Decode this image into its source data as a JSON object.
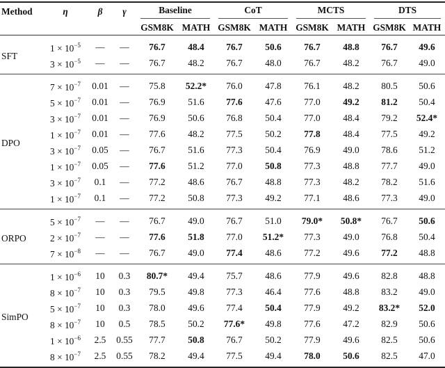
{
  "table": {
    "headers": {
      "method": "Method",
      "eta": "η",
      "beta": "β",
      "gamma": "γ",
      "groups": [
        "Baseline",
        "CoT",
        "MCTS",
        "DTS"
      ],
      "subcols": [
        "GSM8K",
        "MATH"
      ]
    },
    "groups": [
      {
        "method": "SFT",
        "rows": [
          {
            "eta_m": "1",
            "eta_e": "−5",
            "beta": "—",
            "gamma": "—",
            "values": [
              "76.7",
              "48.4",
              "76.7",
              "50.6",
              "76.7",
              "48.8",
              "76.7",
              "49.6"
            ],
            "bold": [
              0,
              1,
              2,
              3,
              4,
              5,
              6,
              7
            ]
          },
          {
            "eta_m": "3",
            "eta_e": "−5",
            "beta": "—",
            "gamma": "—",
            "values": [
              "76.7",
              "48.2",
              "76.7",
              "48.0",
              "76.7",
              "48.2",
              "76.7",
              "49.0"
            ],
            "bold": []
          }
        ]
      },
      {
        "method": "DPO",
        "rows": [
          {
            "eta_m": "7",
            "eta_e": "−7",
            "beta": "0.01",
            "gamma": "—",
            "values": [
              "75.8",
              "52.2*",
              "76.0",
              "47.8",
              "76.1",
              "48.2",
              "80.5",
              "50.6"
            ],
            "bold": [
              1
            ]
          },
          {
            "eta_m": "5",
            "eta_e": "−7",
            "beta": "0.01",
            "gamma": "—",
            "values": [
              "76.9",
              "51.6",
              "77.6",
              "47.6",
              "77.0",
              "49.2",
              "81.2",
              "50.4"
            ],
            "bold": [
              2,
              5,
              6
            ]
          },
          {
            "eta_m": "3",
            "eta_e": "−7",
            "beta": "0.01",
            "gamma": "—",
            "values": [
              "76.9",
              "50.6",
              "76.8",
              "50.4",
              "77.0",
              "48.4",
              "79.2",
              "52.4*"
            ],
            "bold": [
              7
            ]
          },
          {
            "eta_m": "1",
            "eta_e": "−7",
            "beta": "0.01",
            "gamma": "—",
            "values": [
              "77.6",
              "48.2",
              "77.5",
              "50.2",
              "77.8",
              "48.4",
              "77.5",
              "49.2"
            ],
            "bold": [
              4
            ]
          },
          {
            "eta_m": "3",
            "eta_e": "−7",
            "beta": "0.05",
            "gamma": "—",
            "values": [
              "76.7",
              "51.6",
              "77.3",
              "50.4",
              "76.9",
              "49.0",
              "78.6",
              "51.2"
            ],
            "bold": []
          },
          {
            "eta_m": "1",
            "eta_e": "−7",
            "beta": "0.05",
            "gamma": "—",
            "values": [
              "77.6",
              "51.2",
              "77.0",
              "50.8",
              "77.3",
              "48.8",
              "77.7",
              "49.0"
            ],
            "bold": [
              0,
              3
            ]
          },
          {
            "eta_m": "3",
            "eta_e": "−7",
            "beta": "0.1",
            "gamma": "—",
            "values": [
              "77.2",
              "48.6",
              "76.7",
              "48.8",
              "77.3",
              "48.2",
              "78.2",
              "51.6"
            ],
            "bold": []
          },
          {
            "eta_m": "1",
            "eta_e": "−7",
            "beta": "0.1",
            "gamma": "—",
            "values": [
              "77.2",
              "50.8",
              "77.3",
              "49.2",
              "77.1",
              "48.6",
              "77.3",
              "49.0"
            ],
            "bold": []
          }
        ]
      },
      {
        "method": "ORPO",
        "rows": [
          {
            "eta_m": "5",
            "eta_e": "−7",
            "beta": "—",
            "gamma": "—",
            "values": [
              "76.7",
              "49.0",
              "76.7",
              "51.0",
              "79.0*",
              "50.8*",
              "76.7",
              "50.6"
            ],
            "bold": [
              4,
              5,
              7
            ]
          },
          {
            "eta_m": "2",
            "eta_e": "−7",
            "beta": "—",
            "gamma": "—",
            "values": [
              "77.6",
              "51.8",
              "77.0",
              "51.2*",
              "77.3",
              "49.0",
              "76.8",
              "50.4"
            ],
            "bold": [
              0,
              1,
              3
            ]
          },
          {
            "eta_m": "7",
            "eta_e": "−8",
            "beta": "—",
            "gamma": "—",
            "values": [
              "76.7",
              "49.0",
              "77.4",
              "48.6",
              "77.2",
              "49.6",
              "77.2",
              "48.8"
            ],
            "bold": [
              2,
              6
            ]
          }
        ]
      },
      {
        "method": "SimPO",
        "rows": [
          {
            "eta_m": "1",
            "eta_e": "−6",
            "beta": "10",
            "gamma": "0.3",
            "values": [
              "80.7*",
              "49.4",
              "75.7",
              "48.6",
              "77.9",
              "49.6",
              "82.8",
              "48.8"
            ],
            "bold": [
              0
            ]
          },
          {
            "eta_m": "8",
            "eta_e": "−7",
            "beta": "10",
            "gamma": "0.3",
            "values": [
              "79.5",
              "49.8",
              "77.3",
              "46.4",
              "77.6",
              "48.8",
              "83.2",
              "49.0"
            ],
            "bold": []
          },
          {
            "eta_m": "5",
            "eta_e": "−7",
            "beta": "10",
            "gamma": "0.3",
            "values": [
              "78.0",
              "49.6",
              "77.4",
              "50.4",
              "77.9",
              "49.2",
              "83.2*",
              "52.0"
            ],
            "bold": [
              3,
              6,
              7
            ]
          },
          {
            "eta_m": "8",
            "eta_e": "−7",
            "beta": "10",
            "gamma": "0.5",
            "values": [
              "78.5",
              "50.2",
              "77.6*",
              "49.8",
              "77.6",
              "47.2",
              "82.9",
              "50.6"
            ],
            "bold": [
              2
            ]
          },
          {
            "eta_m": "1",
            "eta_e": "−6",
            "beta": "2.5",
            "gamma": "0.55",
            "values": [
              "77.7",
              "50.8",
              "76.7",
              "50.2",
              "77.9",
              "49.6",
              "82.5",
              "50.6"
            ],
            "bold": [
              1
            ]
          },
          {
            "eta_m": "8",
            "eta_e": "−7",
            "beta": "2.5",
            "gamma": "0.55",
            "values": [
              "78.2",
              "49.4",
              "77.5",
              "49.4",
              "78.0",
              "50.6",
              "82.5",
              "47.0"
            ],
            "bold": [
              4,
              5
            ]
          }
        ]
      }
    ]
  }
}
